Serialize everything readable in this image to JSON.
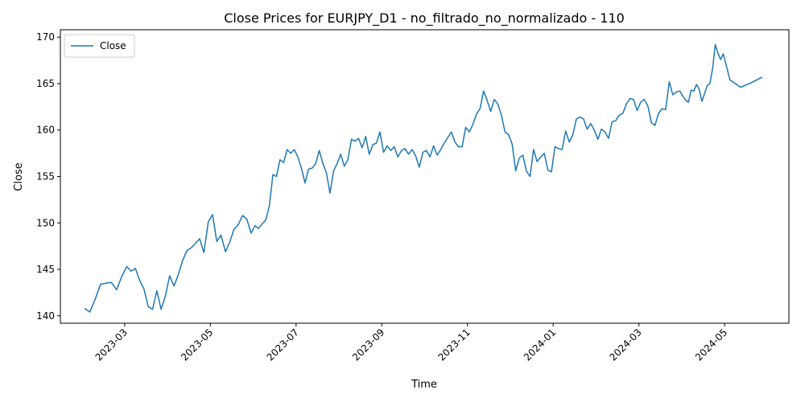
{
  "chart_data": {
    "type": "line",
    "title": "Close Prices for EURJPY_D1 - no_filtrado_no_normalizado - 110",
    "x_label": "Time",
    "y_label": "Close",
    "legend": "upper left",
    "x": [
      "2023-02",
      "2023-02",
      "2023-02",
      "2023-02",
      "2023-02",
      "2023-02",
      "2023-02",
      "2023-02",
      "2023-03",
      "2023-03",
      "2023-03",
      "2023-03",
      "2023-03",
      "2023-03",
      "2023-03",
      "2023-03",
      "2023-03",
      "2023-03",
      "2023-04",
      "2023-04",
      "2023-04",
      "2023-04",
      "2023-04",
      "2023-04",
      "2023-04",
      "2023-04",
      "2023-04",
      "2023-04",
      "2023-05",
      "2023-05",
      "2023-05",
      "2023-05",
      "2023-05",
      "2023-05",
      "2023-05",
      "2023-05",
      "2023-05",
      "2023-05",
      "2023-06",
      "2023-06",
      "2023-06",
      "2023-06",
      "2023-06",
      "2023-06",
      "2023-06",
      "2023-06",
      "2023-06",
      "2023-06",
      "2023-06",
      "2023-06",
      "2023-07",
      "2023-07",
      "2023-07",
      "2023-07",
      "2023-07",
      "2023-07",
      "2023-07",
      "2023-07",
      "2023-07",
      "2023-07",
      "2023-07",
      "2023-07",
      "2023-08",
      "2023-08",
      "2023-08",
      "2023-08",
      "2023-08",
      "2023-08",
      "2023-08",
      "2023-08",
      "2023-08",
      "2023-08",
      "2023-08",
      "2023-08",
      "2023-09",
      "2023-09",
      "2023-09",
      "2023-09",
      "2023-09",
      "2023-09",
      "2023-09",
      "2023-09",
      "2023-09",
      "2023-09",
      "2023-09",
      "2023-09",
      "2023-10",
      "2023-10",
      "2023-10",
      "2023-10",
      "2023-10",
      "2023-10",
      "2023-10",
      "2023-10",
      "2023-10",
      "2023-10",
      "2023-10",
      "2023-10",
      "2023-11",
      "2023-11",
      "2023-11",
      "2023-11",
      "2023-11",
      "2023-11",
      "2023-11",
      "2023-11",
      "2023-11",
      "2023-11",
      "2023-11",
      "2023-11",
      "2023-12",
      "2023-12",
      "2023-12",
      "2023-12",
      "2023-12",
      "2023-12",
      "2023-12",
      "2023-12",
      "2023-12",
      "2023-12",
      "2023-12",
      "2023-12",
      "2024-01",
      "2024-01",
      "2024-01",
      "2024-01",
      "2024-01",
      "2024-01",
      "2024-01",
      "2024-01",
      "2024-01",
      "2024-01",
      "2024-01",
      "2024-01",
      "2024-02",
      "2024-02",
      "2024-02",
      "2024-02",
      "2024-02",
      "2024-02",
      "2024-02",
      "2024-02",
      "2024-02",
      "2024-02",
      "2024-02",
      "2024-02",
      "2024-03",
      "2024-03",
      "2024-03",
      "2024-03",
      "2024-03",
      "2024-03",
      "2024-03",
      "2024-03",
      "2024-03",
      "2024-03",
      "2024-03",
      "2024-03",
      "2024-04",
      "2024-04",
      "2024-04",
      "2024-04",
      "2024-04",
      "2024-04",
      "2024-04",
      "2024-04",
      "2024-04",
      "2024-04",
      "2024-04",
      "2024-04",
      "2024-04",
      "2024-04",
      "2024-04",
      "2024-04",
      "2024-05",
      "2024-05",
      "2024-05",
      "2024-05"
    ],
    "series": [
      {
        "name": "Close",
        "color": "#1f77b4",
        "values": [
          140.8,
          140.4,
          141.8,
          143.4,
          143.5,
          143.6,
          142.8,
          144.3,
          145.3,
          144.8,
          145.1,
          143.8,
          142.9,
          141.0,
          140.7,
          142.7,
          140.7,
          142.1,
          144.3,
          143.2,
          144.4,
          145.9,
          147.0,
          147.3,
          147.8,
          148.3,
          146.8,
          150.1,
          150.9,
          148.0,
          148.7,
          146.9,
          147.9,
          149.3,
          149.8,
          150.8,
          150.4,
          148.9,
          149.7,
          149.4,
          149.9,
          150.3,
          151.8,
          155.2,
          155.0,
          156.8,
          156.5,
          157.9,
          157.5,
          157.9,
          157.1,
          155.9,
          154.3,
          155.8,
          155.9,
          156.4,
          157.8,
          156.4,
          155.4,
          153.2,
          155.6,
          156.4,
          157.4,
          156.1,
          156.8,
          159.0,
          158.8,
          159.1,
          158.1,
          159.3,
          157.4,
          158.4,
          158.6,
          159.8,
          157.6,
          158.3,
          157.8,
          158.2,
          157.1,
          157.8,
          158.0,
          157.4,
          157.9,
          157.2,
          156.0,
          157.6,
          157.8,
          157.1,
          158.3,
          157.3,
          157.9,
          158.6,
          159.2,
          159.8,
          158.7,
          158.2,
          158.2,
          160.3,
          159.8,
          160.6,
          161.7,
          162.3,
          164.2,
          163.2,
          162.0,
          163.3,
          162.8,
          161.6,
          159.8,
          159.5,
          158.5,
          155.6,
          157.0,
          157.3,
          155.6,
          155.0,
          157.9,
          156.6,
          157.1,
          157.5,
          155.7,
          155.5,
          158.2,
          158.0,
          157.9,
          159.9,
          158.7,
          159.5,
          161.2,
          161.4,
          161.2,
          160.1,
          160.7,
          160.0,
          159.0,
          160.1,
          159.8,
          159.1,
          160.9,
          161.0,
          161.6,
          161.8,
          162.8,
          163.4,
          163.3,
          162.1,
          163.0,
          163.3,
          162.6,
          160.8,
          160.5,
          161.8,
          162.3,
          162.2,
          165.2,
          163.8,
          164.1,
          164.2,
          163.6,
          163.2,
          163.0,
          164.3,
          164.2,
          164.9,
          164.4,
          163.1,
          163.9,
          164.8,
          165.0,
          166.6,
          169.2,
          168.3,
          167.6,
          168.2,
          165.4,
          164.6,
          165.1,
          165.7
        ]
      }
    ],
    "xticks": [
      "2023-03",
      "2023-05",
      "2023-07",
      "2023-09",
      "2023-11",
      "2024-01",
      "2024-03",
      "2024-05"
    ],
    "ylim": [
      139.2,
      170.8
    ],
    "yticks": [
      140,
      145,
      150,
      155,
      160,
      165,
      170
    ]
  }
}
